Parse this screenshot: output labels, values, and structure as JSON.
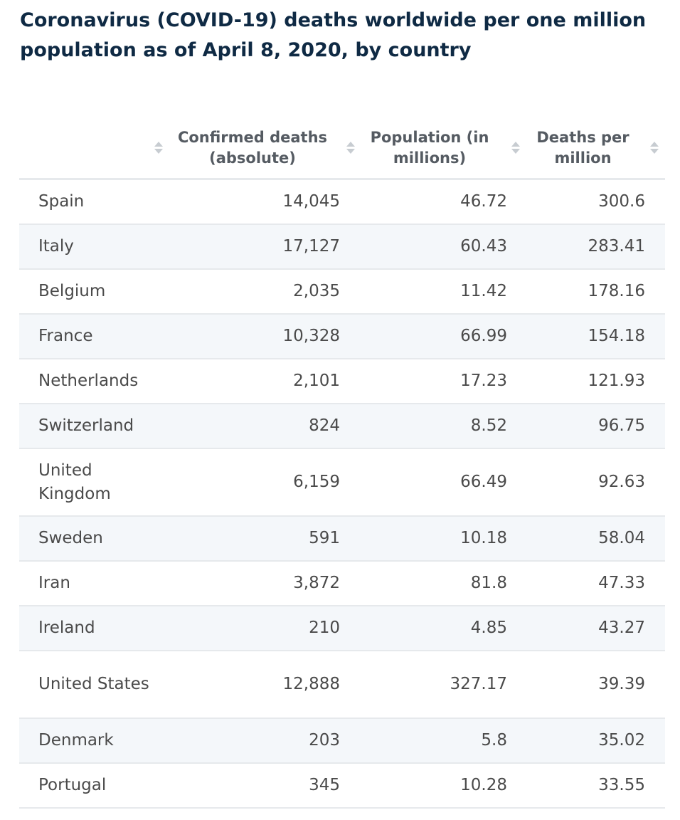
{
  "title": "Coronavirus (COVID-19) deaths worldwide per one million population as of April 8, 2020, by country",
  "chart_data": {
    "type": "table",
    "title": "Coronavirus (COVID-19) deaths worldwide per one million population as of April 8, 2020, by country",
    "columns": [
      "",
      "Confirmed deaths (absolute)",
      "Population (in millions)",
      "Deaths per million"
    ],
    "rows": [
      {
        "country": "Spain",
        "deaths": "14,045",
        "population": "46.72",
        "per_million": "300.6"
      },
      {
        "country": "Italy",
        "deaths": "17,127",
        "population": "60.43",
        "per_million": "283.41"
      },
      {
        "country": "Belgium",
        "deaths": "2,035",
        "population": "11.42",
        "per_million": "178.16"
      },
      {
        "country": "France",
        "deaths": "10,328",
        "population": "66.99",
        "per_million": "154.18"
      },
      {
        "country": "Netherlands",
        "deaths": "2,101",
        "population": "17.23",
        "per_million": "121.93"
      },
      {
        "country": "Switzerland",
        "deaths": "824",
        "population": "8.52",
        "per_million": "96.75"
      },
      {
        "country": "United Kingdom",
        "deaths": "6,159",
        "population": "66.49",
        "per_million": "92.63"
      },
      {
        "country": "Sweden",
        "deaths": "591",
        "population": "10.18",
        "per_million": "58.04"
      },
      {
        "country": "Iran",
        "deaths": "3,872",
        "population": "81.8",
        "per_million": "47.33"
      },
      {
        "country": "Ireland",
        "deaths": "210",
        "population": "4.85",
        "per_million": "43.27"
      },
      {
        "country": "United States",
        "deaths": "12,888",
        "population": "327.17",
        "per_million": "39.39"
      },
      {
        "country": "Denmark",
        "deaths": "203",
        "population": "5.8",
        "per_million": "35.02"
      },
      {
        "country": "Portugal",
        "deaths": "345",
        "population": "10.28",
        "per_million": "33.55"
      }
    ]
  },
  "colors": {
    "title": "#0f2a44",
    "text": "#4a4a4a",
    "alt_row": "#f4f7fa",
    "divider": "#e6e9ec",
    "sort_icon": "#c7ccd1"
  }
}
